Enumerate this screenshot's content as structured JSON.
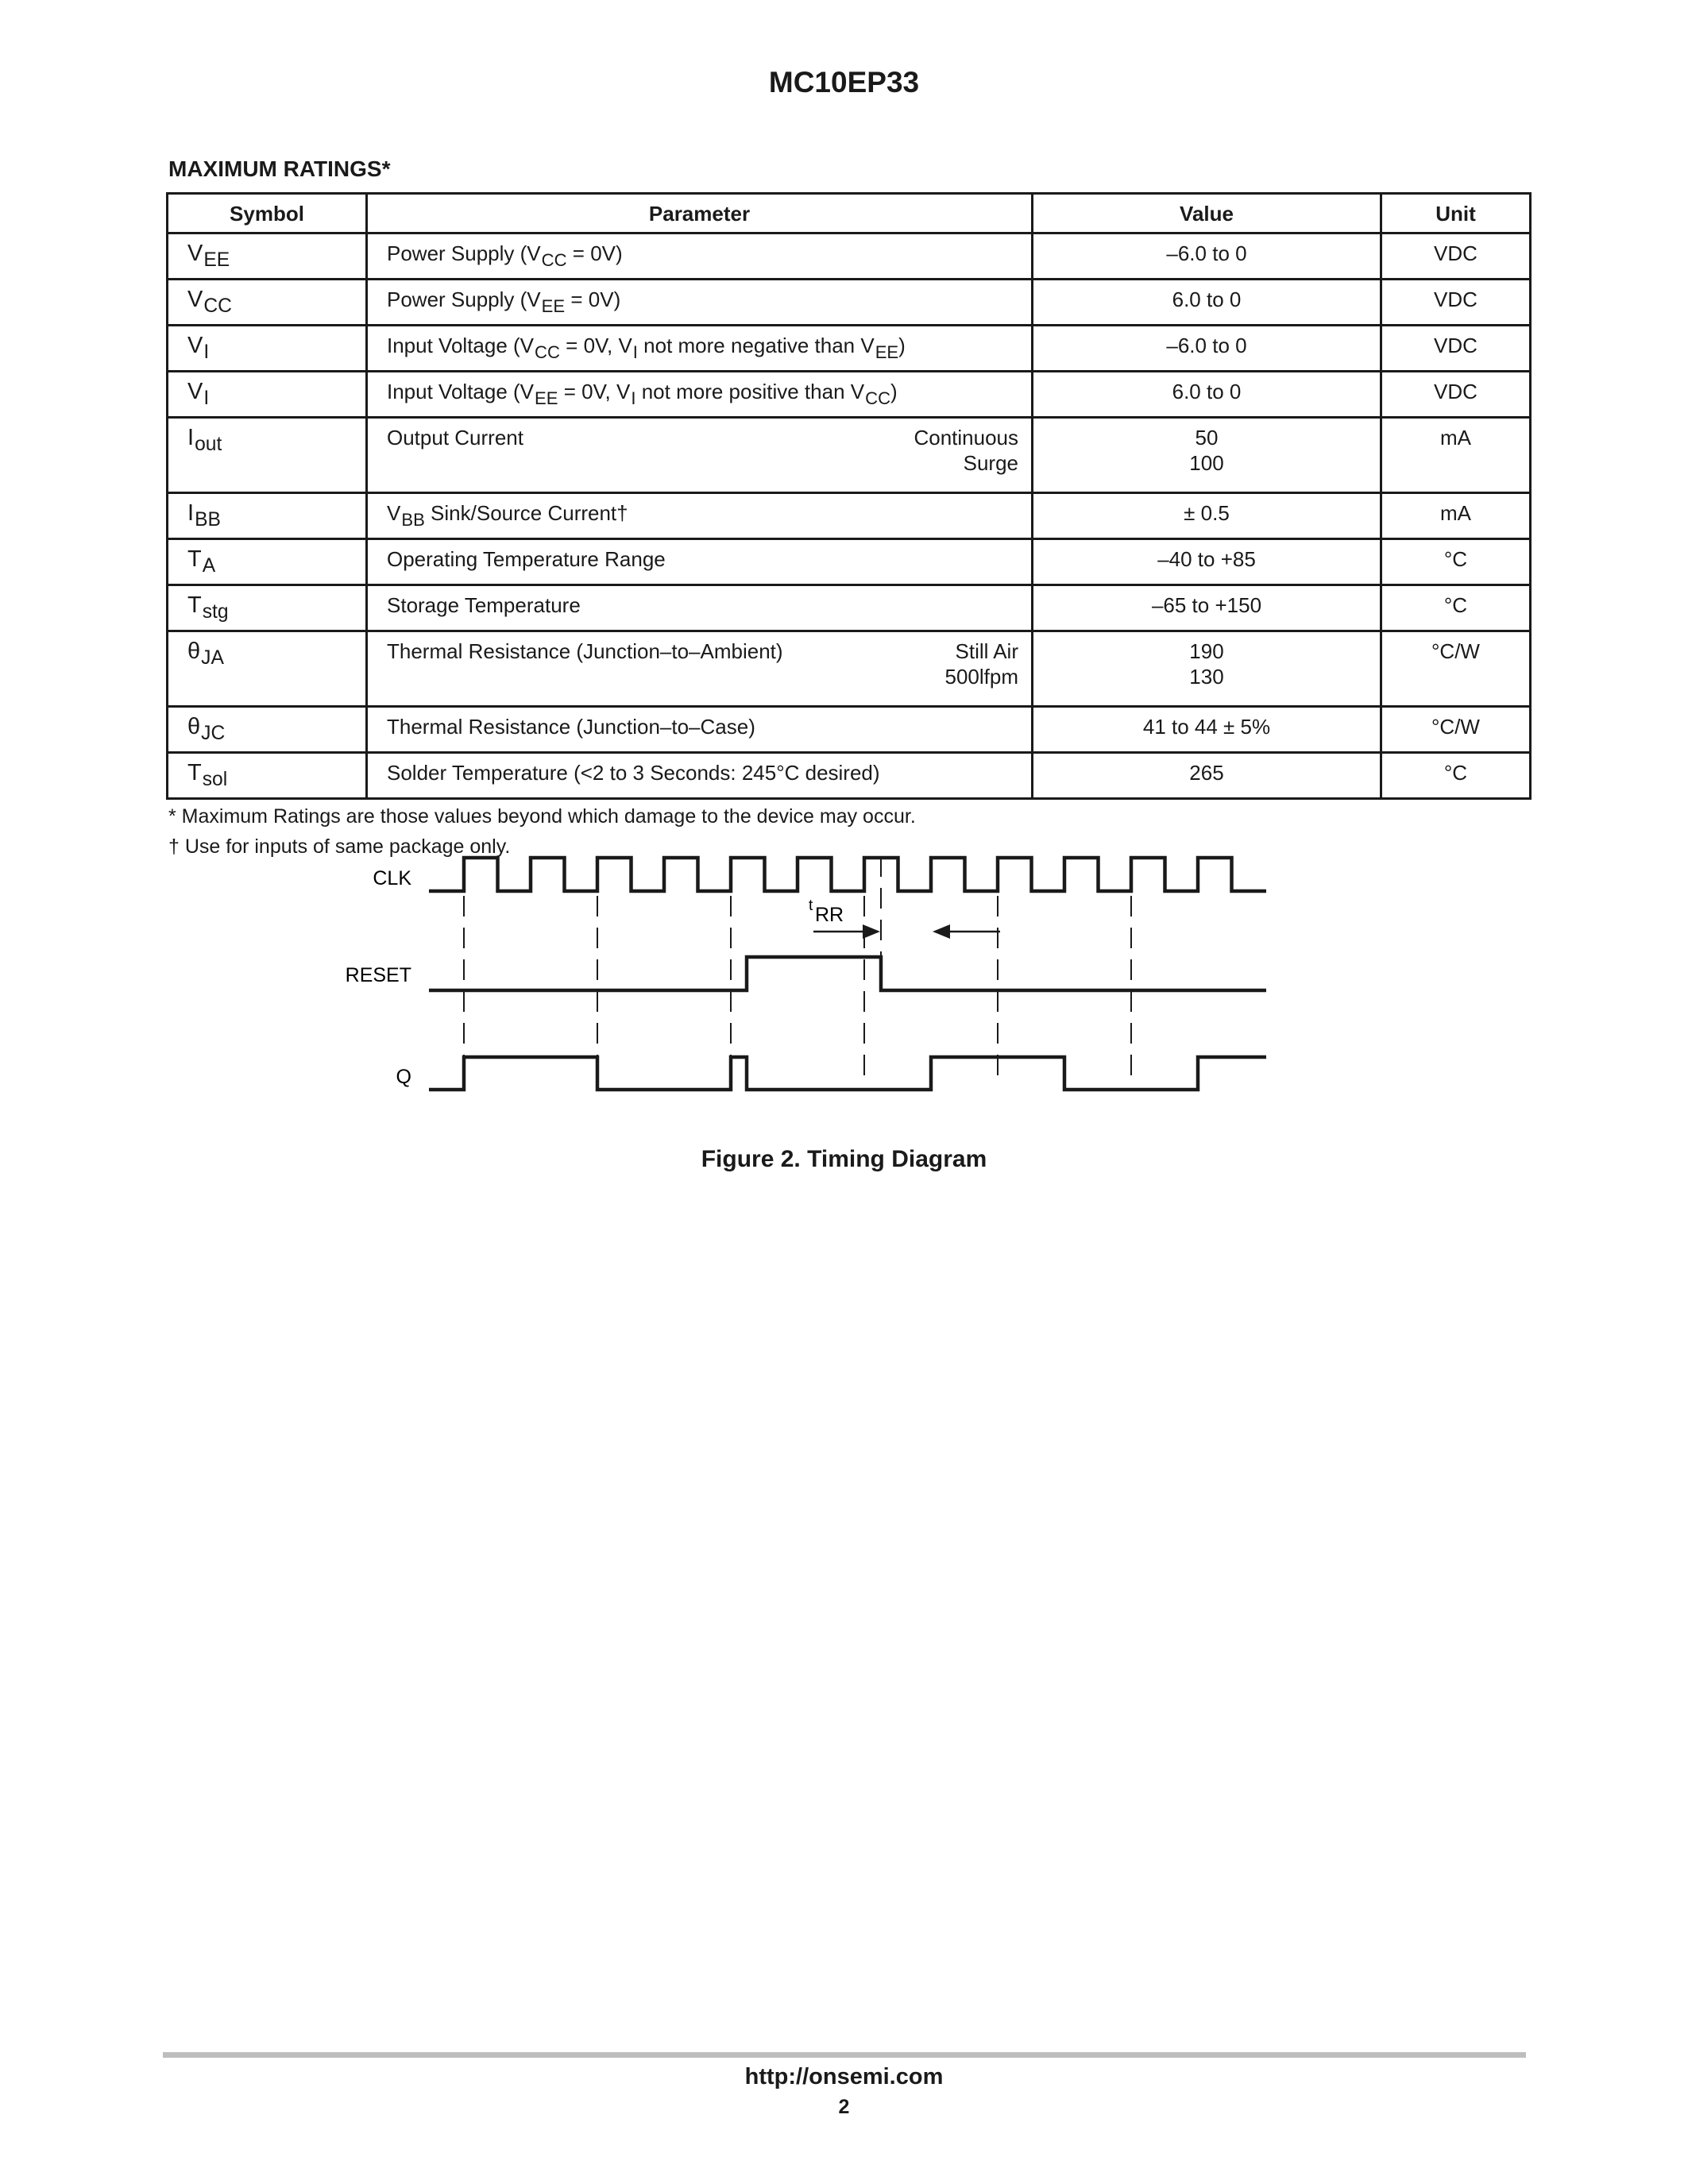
{
  "header": {
    "title": "MC10EP33"
  },
  "section_title": "MAXIMUM RATINGS*",
  "table": {
    "columns": [
      "Symbol",
      "Parameter",
      "Value",
      "Unit"
    ],
    "rows": [
      {
        "symbol": {
          "base": "V",
          "sub": "EE"
        },
        "param": [
          {
            "t": "Power Supply (V"
          },
          {
            "sub": "CC"
          },
          {
            "t": " = 0V)"
          }
        ],
        "value": [
          "–6.0 to 0"
        ],
        "unit": "VDC"
      },
      {
        "symbol": {
          "base": "V",
          "sub": "CC"
        },
        "param": [
          {
            "t": "Power Supply (V"
          },
          {
            "sub": "EE"
          },
          {
            "t": " = 0V)"
          }
        ],
        "value": [
          "6.0 to 0"
        ],
        "unit": "VDC"
      },
      {
        "symbol": {
          "base": "V",
          "sub": "I"
        },
        "param": [
          {
            "t": "Input Voltage (V"
          },
          {
            "sub": "CC"
          },
          {
            "t": " = 0V, V"
          },
          {
            "sub": "I"
          },
          {
            "t": " not more negative than V"
          },
          {
            "sub": "EE"
          },
          {
            "t": ")"
          }
        ],
        "value": [
          "–6.0 to 0"
        ],
        "unit": "VDC"
      },
      {
        "symbol": {
          "base": "V",
          "sub": "I"
        },
        "param": [
          {
            "t": "Input Voltage (V"
          },
          {
            "sub": "EE"
          },
          {
            "t": " = 0V, V"
          },
          {
            "sub": "I"
          },
          {
            "t": " not more positive than V"
          },
          {
            "sub": "CC"
          },
          {
            "t": ")"
          }
        ],
        "value": [
          "6.0 to 0"
        ],
        "unit": "VDC"
      },
      {
        "symbol": {
          "base": "I",
          "sub": "out"
        },
        "param": [
          {
            "t": "Output Current"
          }
        ],
        "conditions": [
          "Continuous",
          "Surge"
        ],
        "value": [
          "50",
          "100"
        ],
        "unit": "mA"
      },
      {
        "symbol": {
          "base": "I",
          "sub": "BB"
        },
        "param": [
          {
            "t": "V"
          },
          {
            "sub": "BB"
          },
          {
            "t": " Sink/Source Current†"
          }
        ],
        "value": [
          "± 0.5"
        ],
        "unit": "mA"
      },
      {
        "symbol": {
          "base": "T",
          "sub": "A"
        },
        "param": [
          {
            "t": "Operating Temperature Range"
          }
        ],
        "value": [
          "–40 to +85"
        ],
        "unit": "°C"
      },
      {
        "symbol": {
          "base": "T",
          "sub": "stg"
        },
        "param": [
          {
            "t": "Storage Temperature"
          }
        ],
        "value": [
          "–65 to +150"
        ],
        "unit": "°C"
      },
      {
        "symbol": {
          "base": "θ",
          "sub": "JA"
        },
        "param": [
          {
            "t": "Thermal Resistance (Junction–to–Ambient)"
          }
        ],
        "conditions": [
          "Still Air",
          "500lfpm"
        ],
        "value": [
          "190",
          "130"
        ],
        "unit": "°C/W"
      },
      {
        "symbol": {
          "base": "θ",
          "sub": "JC"
        },
        "param": [
          {
            "t": "Thermal Resistance (Junction–to–Case)"
          }
        ],
        "value": [
          "41 to 44 ± 5%"
        ],
        "unit": "°C/W"
      },
      {
        "symbol": {
          "base": "T",
          "sub": "sol"
        },
        "param": [
          {
            "t": "Solder Temperature (<2 to 3 Seconds: 245°C desired)"
          }
        ],
        "value": [
          "265"
        ],
        "unit": "°C"
      }
    ]
  },
  "footnotes": [
    "* Maximum Ratings are those values beyond which damage to the device may occur.",
    "† Use for inputs of same package only."
  ],
  "figure": {
    "signals": [
      "CLK",
      "RESET",
      "Q"
    ],
    "annotation": {
      "base": "t",
      "sub": "RR"
    },
    "caption": "Figure 2.  Timing Diagram"
  },
  "footer": {
    "url": "http://onsemi.com",
    "page": "2"
  }
}
